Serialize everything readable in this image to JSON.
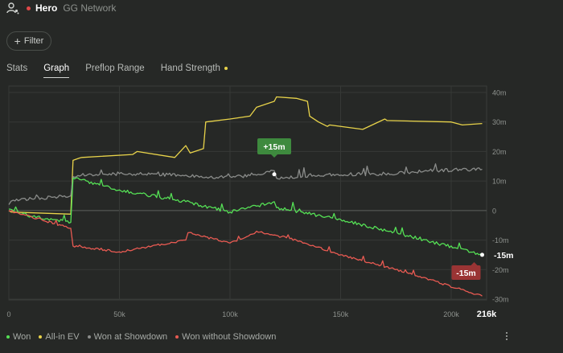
{
  "header": {
    "icon": "user-network-icon",
    "player": "Hero",
    "network": "GG Network"
  },
  "toolbar": {
    "filter_label": "Filter",
    "filter_icon": "plus-icon"
  },
  "tabs": [
    {
      "label": "Stats",
      "active": false
    },
    {
      "label": "Graph",
      "active": true
    },
    {
      "label": "Preflop Range",
      "active": false
    },
    {
      "label": "Hand Strength",
      "active": false,
      "badge": true
    }
  ],
  "chart_data": {
    "type": "line",
    "xlim": [
      0,
      216000
    ],
    "ylim": [
      -30000000,
      40000000
    ],
    "x_ticks": [
      {
        "value": 0,
        "label": "0"
      },
      {
        "value": 50000,
        "label": "50k"
      },
      {
        "value": 100000,
        "label": "100k"
      },
      {
        "value": 150000,
        "label": "150k"
      },
      {
        "value": 200000,
        "label": "200k"
      }
    ],
    "x_end_label": "216k",
    "y_ticks": [
      {
        "value": 40000000,
        "label": "40m"
      },
      {
        "value": 30000000,
        "label": "30m"
      },
      {
        "value": 20000000,
        "label": "20m"
      },
      {
        "value": 10000000,
        "label": "10m"
      },
      {
        "value": 0,
        "label": "0"
      },
      {
        "value": -10000000,
        "label": "-10m"
      },
      {
        "value": -20000000,
        "label": "-20m"
      },
      {
        "value": -30000000,
        "label": "-30m"
      }
    ],
    "grid": true,
    "legend_position": "bottom-left",
    "series": [
      {
        "name": "All-in EV",
        "color": "#e8d34a",
        "x": [
          0,
          1000,
          28000,
          29000,
          32000,
          33000,
          56000,
          58000,
          75000,
          80000,
          82000,
          88000,
          89000,
          100000,
          109000,
          112000,
          120000,
          121000,
          130000,
          135000,
          136000,
          140000,
          144000,
          145000,
          160000,
          170000,
          171000,
          200000,
          205000,
          214000
        ],
        "y": [
          0,
          -500000,
          -1200000,
          17000000,
          17800000,
          18000000,
          19000000,
          20000000,
          18000000,
          22000000,
          19500000,
          21000000,
          30000000,
          31000000,
          32000000,
          35000000,
          37000000,
          38500000,
          38000000,
          37000000,
          32000000,
          30000000,
          28500000,
          29000000,
          27500000,
          31000000,
          30500000,
          30000000,
          29000000,
          29500000
        ]
      },
      {
        "name": "Won at Showdown",
        "color": "#8a8c8a",
        "x": [
          0,
          2000,
          20000,
          28000,
          29000,
          50000,
          80000,
          90000,
          100000,
          112000,
          120000,
          121000,
          140000,
          170000,
          190000,
          214000
        ],
        "y": [
          2000000,
          3500000,
          4500000,
          5000000,
          11500000,
          12500000,
          12000000,
          11000000,
          11500000,
          12000000,
          13500000,
          11000000,
          12000000,
          12500000,
          13500000,
          14000000
        ]
      },
      {
        "name": "Won",
        "color": "#55e055",
        "x": [
          0,
          10000,
          28000,
          29000,
          50000,
          80000,
          100000,
          112000,
          120000,
          121000,
          150000,
          180000,
          214000
        ],
        "y": [
          500000,
          -2000000,
          -4000000,
          11000000,
          7000000,
          3000000,
          -500000,
          1500000,
          3000000,
          1000000,
          -3000000,
          -8500000,
          -15000000
        ]
      },
      {
        "name": "Won without Showdown",
        "color": "#e85a52",
        "x": [
          0,
          28000,
          29000,
          50000,
          80000,
          81000,
          100000,
          110000,
          112000,
          130000,
          150000,
          180000,
          214000
        ],
        "y": [
          0,
          -6000000,
          -12000000,
          -14000000,
          -10000000,
          -7500000,
          -11000000,
          -8000000,
          -7000000,
          -10000000,
          -15000000,
          -21000000,
          -29000000
        ]
      }
    ],
    "annotations": [
      {
        "label": "+15m",
        "x": 120000,
        "y": 15000000,
        "color": "#3e8a3e"
      },
      {
        "label": "-15m",
        "x": 214000,
        "y": -15000000,
        "color": "#9a3434"
      }
    ],
    "end_value_label": "-15m"
  },
  "legend": [
    {
      "label": "Won",
      "color": "#55e055"
    },
    {
      "label": "All-in EV",
      "color": "#e8d34a"
    },
    {
      "label": "Won at Showdown",
      "color": "#8a8c8a"
    },
    {
      "label": "Won without Showdown",
      "color": "#e85a52"
    }
  ],
  "menu_icon": "kebab-menu-icon"
}
